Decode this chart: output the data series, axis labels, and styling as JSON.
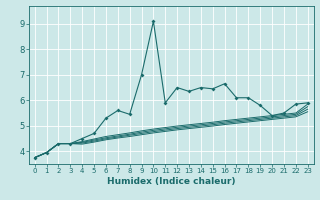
{
  "xlabel": "Humidex (Indice chaleur)",
  "bg_color": "#cce8e8",
  "grid_color": "#ffffff",
  "line_color": "#1a6b6b",
  "xlim": [
    -0.5,
    23.5
  ],
  "ylim": [
    3.5,
    9.7
  ],
  "xticks": [
    0,
    1,
    2,
    3,
    4,
    5,
    6,
    7,
    8,
    9,
    10,
    11,
    12,
    13,
    14,
    15,
    16,
    17,
    18,
    19,
    20,
    21,
    22,
    23
  ],
  "yticks": [
    4,
    5,
    6,
    7,
    8,
    9
  ],
  "main_line_x": [
    0,
    1,
    2,
    3,
    4,
    5,
    6,
    7,
    8,
    9,
    10,
    11,
    12,
    13,
    14,
    15,
    16,
    17,
    18,
    19,
    20,
    21,
    22,
    23
  ],
  "main_line_y": [
    3.75,
    3.95,
    4.3,
    4.3,
    4.5,
    4.7,
    5.3,
    5.6,
    5.45,
    7.0,
    9.1,
    5.9,
    6.5,
    6.35,
    6.5,
    6.45,
    6.65,
    6.1,
    6.1,
    5.8,
    5.4,
    5.5,
    5.85,
    5.9
  ],
  "band_lines": [
    [
      3.75,
      3.95,
      4.3,
      4.3,
      4.38,
      4.48,
      4.58,
      4.65,
      4.72,
      4.8,
      4.87,
      4.93,
      4.99,
      5.04,
      5.09,
      5.14,
      5.2,
      5.25,
      5.3,
      5.35,
      5.4,
      5.45,
      5.5,
      5.85
    ],
    [
      3.75,
      3.95,
      4.3,
      4.3,
      4.35,
      4.44,
      4.53,
      4.6,
      4.67,
      4.75,
      4.82,
      4.88,
      4.94,
      4.99,
      5.04,
      5.09,
      5.15,
      5.2,
      5.25,
      5.3,
      5.35,
      5.4,
      5.45,
      5.75
    ],
    [
      3.75,
      3.95,
      4.3,
      4.3,
      4.32,
      4.4,
      4.49,
      4.56,
      4.63,
      4.7,
      4.77,
      4.83,
      4.89,
      4.94,
      4.99,
      5.04,
      5.1,
      5.15,
      5.2,
      5.25,
      5.3,
      5.35,
      5.4,
      5.65
    ],
    [
      3.75,
      3.95,
      4.3,
      4.3,
      4.28,
      4.36,
      4.45,
      4.52,
      4.58,
      4.65,
      4.72,
      4.78,
      4.84,
      4.89,
      4.94,
      4.99,
      5.05,
      5.1,
      5.15,
      5.2,
      5.25,
      5.3,
      5.35,
      5.55
    ]
  ]
}
